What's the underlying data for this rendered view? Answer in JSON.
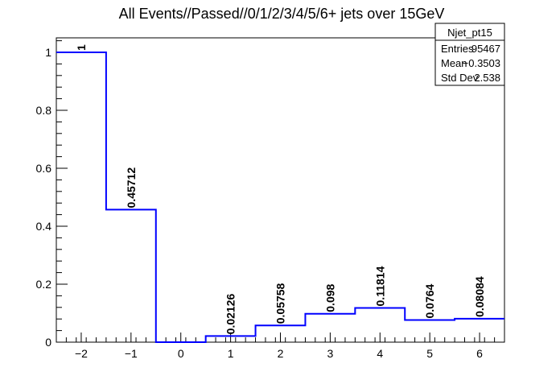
{
  "chart_data": {
    "type": "bar",
    "title": "All Events//Passed//0/1/2/3/4/5/6+ jets over 15GeV",
    "xlabel": "",
    "ylabel": "",
    "xlim": [
      -2.5,
      6.5
    ],
    "ylim": [
      0,
      1.05
    ],
    "x_ticks": [
      -2,
      -1,
      0,
      1,
      2,
      3,
      4,
      5,
      6
    ],
    "x_tick_labels": [
      "−2",
      "−1",
      "0",
      "1",
      "2",
      "3",
      "4",
      "5",
      "6"
    ],
    "y_ticks": [
      0,
      0.2,
      0.4,
      0.6,
      0.8,
      1
    ],
    "y_tick_labels": [
      "0",
      "0.2",
      "0.4",
      "0.6",
      "0.8",
      "1"
    ],
    "bin_edges": [
      -2.5,
      -1.5,
      -0.5,
      0.5,
      1.5,
      2.5,
      3.5,
      4.5,
      5.5,
      6.5
    ],
    "values": [
      1,
      0.45712,
      0,
      0.02126,
      0.05758,
      0.098,
      0.11814,
      0.0764,
      0.08084
    ],
    "value_labels": [
      "1",
      "0.45712",
      "",
      "0.02126",
      "0.05758",
      "0.098",
      "0.11814",
      "0.0764",
      "0.08084"
    ],
    "line_color": "#0000ff",
    "grid": false,
    "legend": "none",
    "stats": {
      "name": "Njet_pt15",
      "rows": [
        {
          "label": "Entries",
          "value": "95467"
        },
        {
          "label": "Mean",
          "value": "−0.3503"
        },
        {
          "label": "Std Dev",
          "value": "2.538"
        }
      ]
    }
  }
}
